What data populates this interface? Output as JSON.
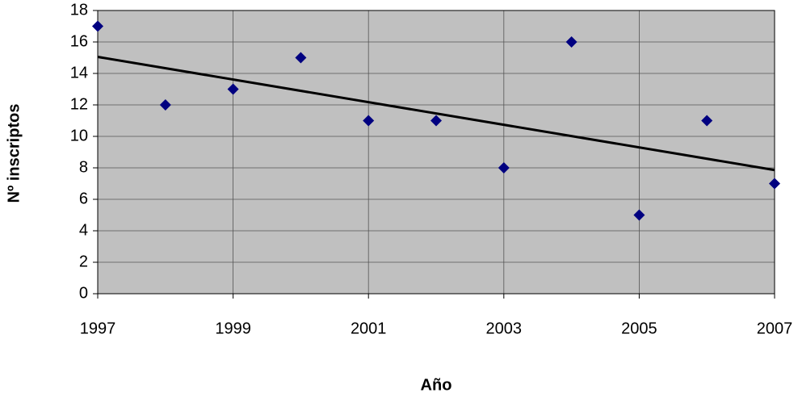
{
  "chart_data": {
    "type": "scatter",
    "x_label": "Año",
    "y_label": "Nº inscriptos",
    "x": [
      1997,
      1998,
      1999,
      2000,
      2001,
      2002,
      2003,
      2004,
      2005,
      2006,
      2007
    ],
    "series": [
      {
        "color": "#000080",
        "values": [
          17,
          12,
          13,
          15,
          11,
          11,
          8,
          16,
          5,
          11,
          7
        ]
      }
    ],
    "trendline": {
      "color": "#000000",
      "x": [
        1997,
        2007
      ],
      "values": [
        15.05,
        7.86
      ]
    },
    "xlim": [
      1997,
      2007
    ],
    "xticks": [
      1997,
      1999,
      2001,
      2003,
      2005,
      2007
    ],
    "ylim": [
      0,
      18
    ],
    "yticks": [
      0,
      2,
      4,
      6,
      8,
      10,
      12,
      14,
      16,
      18
    ],
    "grid": true,
    "plot_background": "#c0c0c0"
  }
}
